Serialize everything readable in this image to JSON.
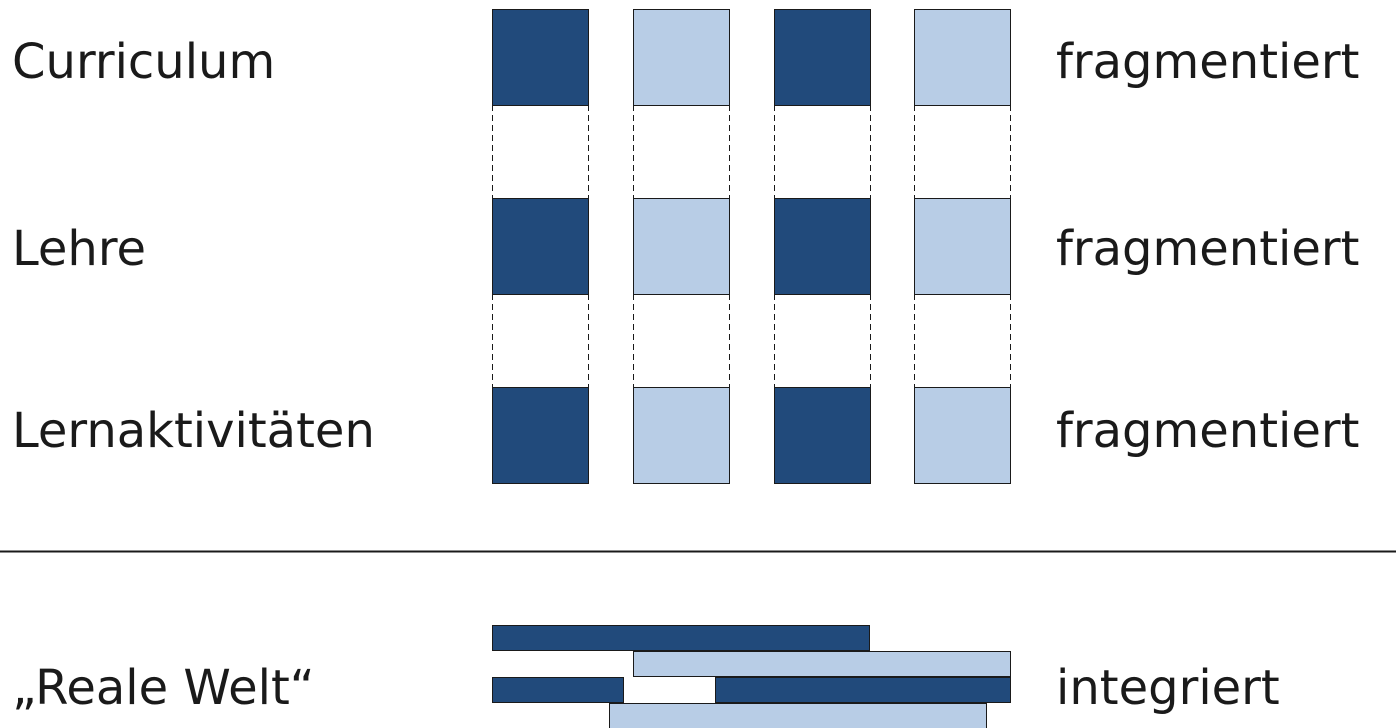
{
  "rows": [
    {
      "label": "Curriculum",
      "status": "fragmentiert"
    },
    {
      "label": "Lehre",
      "status": "fragmentiert"
    },
    {
      "label": "Lernaktivitäten",
      "status": "fragmentiert"
    }
  ],
  "real_world": {
    "label": "„Reale Welt“",
    "status": "integriert"
  },
  "colors": {
    "dark_blue": "#214a7b",
    "light_blue": "#b8cde6",
    "stroke": "#1a1a1a",
    "divider": "#1a1a1a"
  },
  "column_pattern": [
    "dark",
    "light",
    "dark",
    "light"
  ]
}
